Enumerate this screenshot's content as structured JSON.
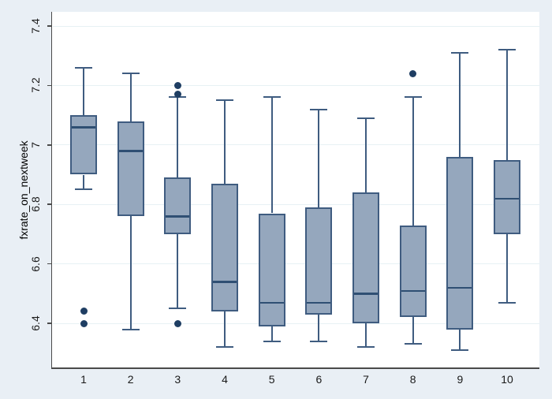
{
  "figure": {
    "background_color": "#e9eff5",
    "plot_background": "#ffffff",
    "gridline_color": "#e7f1f4",
    "axis_color": "#4a4a4a",
    "box_fill": "#95a7bd",
    "box_border": "#3f5c80",
    "median_color": "#2f4f73",
    "outlier_color": "#1f3e63"
  },
  "chart_data": {
    "type": "box",
    "title": "",
    "xlabel": "",
    "ylabel": "fxrate_on_nextweek",
    "grid": true,
    "legend": "none",
    "y_ticks": [
      6.4,
      6.6,
      6.8,
      7.0,
      7.2,
      7.4
    ],
    "y_tick_labels": [
      "6.4",
      "6.6",
      "6.8",
      "7",
      "7.2",
      "7.4"
    ],
    "ylim": [
      6.25,
      7.45
    ],
    "categories": [
      "1",
      "2",
      "3",
      "4",
      "5",
      "6",
      "7",
      "8",
      "9",
      "10"
    ],
    "boxes": [
      {
        "category": "1",
        "whisker_low": 6.85,
        "q1": 6.9,
        "median": 7.06,
        "q3": 7.1,
        "whisker_high": 7.26,
        "outliers": [
          6.44,
          6.4
        ]
      },
      {
        "category": "2",
        "whisker_low": 6.38,
        "q1": 6.76,
        "median": 6.98,
        "q3": 7.08,
        "whisker_high": 7.24,
        "outliers": []
      },
      {
        "category": "3",
        "whisker_low": 6.45,
        "q1": 6.7,
        "median": 6.76,
        "q3": 6.89,
        "whisker_high": 7.16,
        "outliers": [
          7.2,
          7.17,
          6.4
        ]
      },
      {
        "category": "4",
        "whisker_low": 6.32,
        "q1": 6.44,
        "median": 6.54,
        "q3": 6.87,
        "whisker_high": 7.15,
        "outliers": []
      },
      {
        "category": "5",
        "whisker_low": 6.34,
        "q1": 6.39,
        "median": 6.47,
        "q3": 6.77,
        "whisker_high": 7.16,
        "outliers": []
      },
      {
        "category": "6",
        "whisker_low": 6.34,
        "q1": 6.43,
        "median": 6.47,
        "q3": 6.79,
        "whisker_high": 7.12,
        "outliers": []
      },
      {
        "category": "7",
        "whisker_low": 6.32,
        "q1": 6.4,
        "median": 6.5,
        "q3": 6.84,
        "whisker_high": 7.09,
        "outliers": []
      },
      {
        "category": "8",
        "whisker_low": 6.33,
        "q1": 6.42,
        "median": 6.51,
        "q3": 6.73,
        "whisker_high": 7.16,
        "outliers": [
          7.24
        ]
      },
      {
        "category": "9",
        "whisker_low": 6.31,
        "q1": 6.38,
        "median": 6.52,
        "q3": 6.96,
        "whisker_high": 7.31,
        "outliers": []
      },
      {
        "category": "10",
        "whisker_low": 6.47,
        "q1": 6.7,
        "median": 6.82,
        "q3": 6.95,
        "whisker_high": 7.32,
        "outliers": []
      }
    ]
  }
}
